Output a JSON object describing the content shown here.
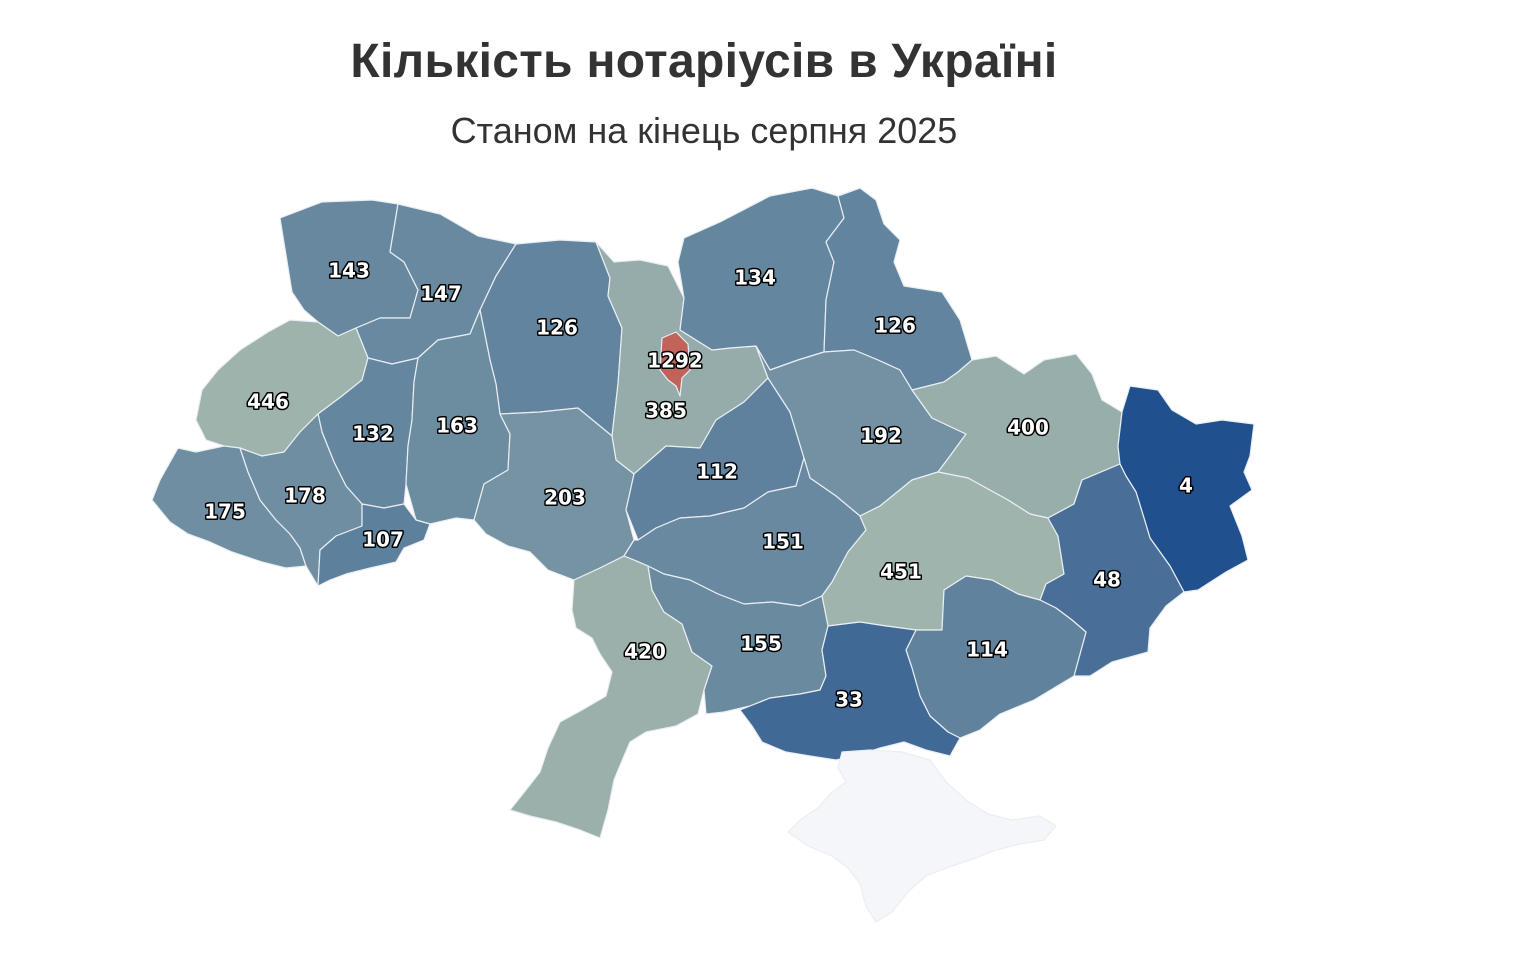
{
  "title": "Кількість нотаріусів в Україні",
  "subtitle": "Станом на кінець серпня 2025",
  "colors": {
    "low": "#21508f",
    "high": "#9fb4ac",
    "top": "#c0645a",
    "nodata": "#f5f6f9",
    "border": "#e9eef4"
  },
  "regions": [
    {
      "id": "volyn",
      "value": "143"
    },
    {
      "id": "rivne",
      "value": "147"
    },
    {
      "id": "zhytomyr",
      "value": "126"
    },
    {
      "id": "kyiv-city",
      "value": "1292"
    },
    {
      "id": "kyiv-oblast",
      "value": "385"
    },
    {
      "id": "chernihiv",
      "value": "134"
    },
    {
      "id": "sumy",
      "value": "126"
    },
    {
      "id": "lviv",
      "value": "446"
    },
    {
      "id": "ternopil",
      "value": "132"
    },
    {
      "id": "khmelnytskyi",
      "value": "163"
    },
    {
      "id": "vinnytsia",
      "value": "203"
    },
    {
      "id": "cherkasy",
      "value": "112"
    },
    {
      "id": "poltava",
      "value": "192"
    },
    {
      "id": "kharkiv",
      "value": "400"
    },
    {
      "id": "luhansk",
      "value": "4"
    },
    {
      "id": "zakarpattia",
      "value": "175"
    },
    {
      "id": "ivano-frankivsk",
      "value": "178"
    },
    {
      "id": "chernivtsi",
      "value": "107"
    },
    {
      "id": "kirovohrad",
      "value": "151"
    },
    {
      "id": "dnipropetrovsk",
      "value": "451"
    },
    {
      "id": "donetsk",
      "value": "48"
    },
    {
      "id": "odesa",
      "value": "420"
    },
    {
      "id": "mykolaiv",
      "value": "155"
    },
    {
      "id": "zaporizhzhia",
      "value": "114"
    },
    {
      "id": "kherson",
      "value": "33"
    },
    {
      "id": "crimea",
      "value": ""
    }
  ]
}
